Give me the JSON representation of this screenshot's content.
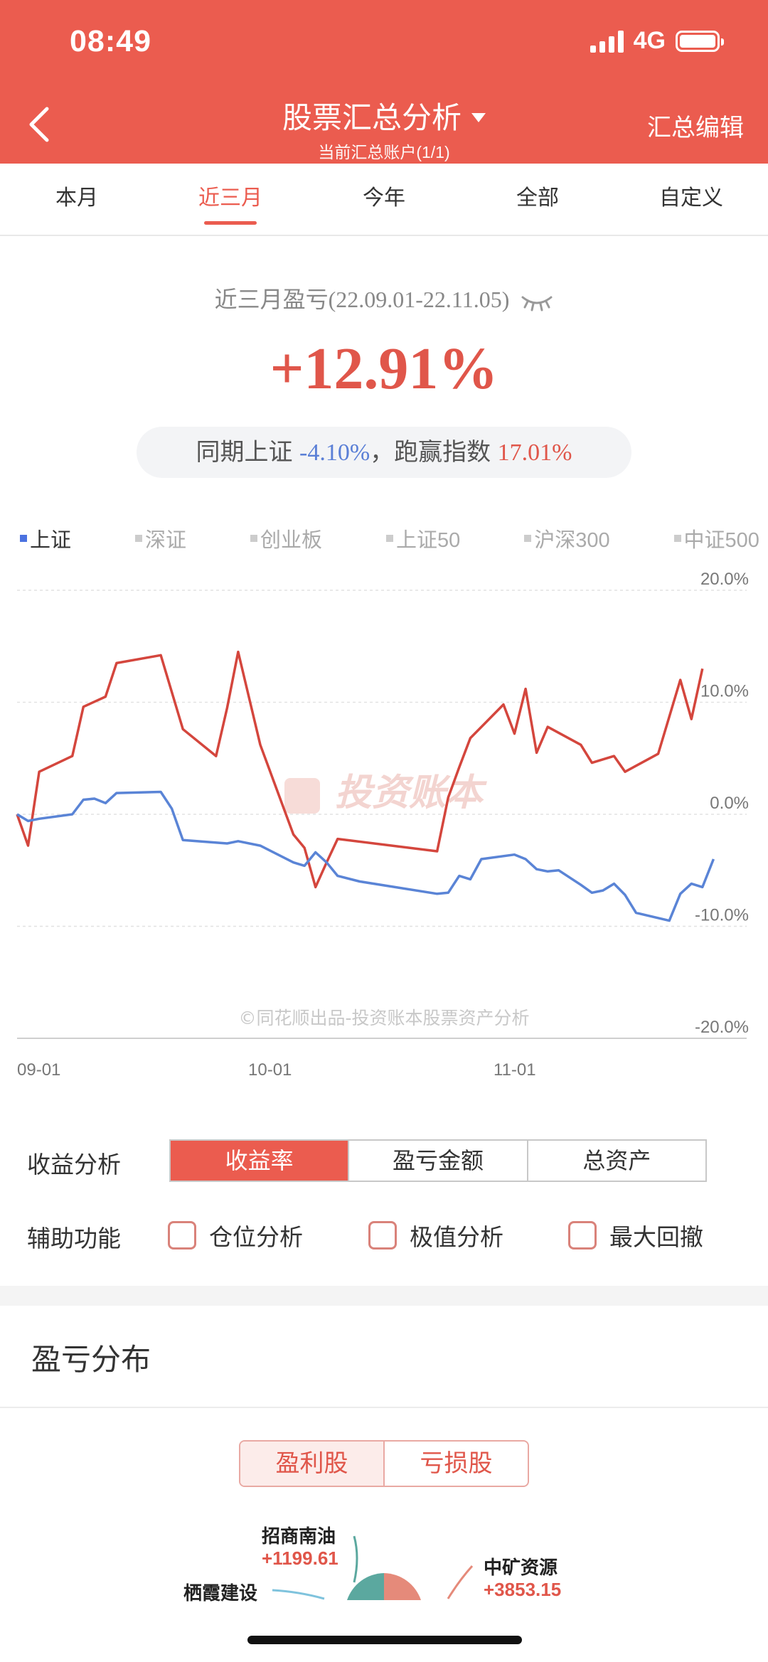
{
  "status_bar": {
    "time": "08:49",
    "network": "4G"
  },
  "header": {
    "title": "股票汇总分析",
    "subtitle": "当前汇总账户(1/1)",
    "edit_label": "汇总编辑"
  },
  "tabs": [
    {
      "label": "本月",
      "active": false
    },
    {
      "label": "近三月",
      "active": true
    },
    {
      "label": "今年",
      "active": false
    },
    {
      "label": "全部",
      "active": false
    },
    {
      "label": "自定义",
      "active": false
    }
  ],
  "summary": {
    "period_label": "近三月盈亏(22.09.01-22.11.05)",
    "profit_pct": "+12.91%",
    "compare_prefix": "同期上证",
    "index_pct": "-4.10%",
    "compare_mid": "，跑赢指数",
    "beat_pct": "17.01%"
  },
  "index_legend": [
    {
      "label": "上证",
      "active": true
    },
    {
      "label": "深证",
      "active": false
    },
    {
      "label": "创业板",
      "active": false
    },
    {
      "label": "上证50",
      "active": false
    },
    {
      "label": "沪深300",
      "active": false
    },
    {
      "label": "中证500",
      "active": false
    }
  ],
  "colors": {
    "accent": "#eb5c4f",
    "portfolio_line": "#d4463d",
    "index_line": "#5a84d6"
  },
  "chart_data": {
    "type": "line",
    "x_ticks": [
      "09-01",
      "10-01",
      "11-01"
    ],
    "y_ticks": [
      "20.0%",
      "10.0%",
      "0.0%",
      "-10.0%",
      "-20.0%"
    ],
    "ylim": [
      -20,
      20
    ],
    "x_range": [
      0,
      66
    ],
    "watermark": "投资账本",
    "footer_note": "©同花顺出品-投资账本股票资产分析",
    "series": [
      {
        "points": [
          [
            0,
            0
          ],
          [
            1,
            -2.8
          ],
          [
            2,
            3.8
          ],
          [
            5,
            5.2
          ],
          [
            6,
            9.6
          ],
          [
            8,
            10.5
          ],
          [
            9,
            13.5
          ],
          [
            13,
            14.2
          ],
          [
            15,
            7.6
          ],
          [
            18,
            5.2
          ],
          [
            19,
            9.5
          ],
          [
            20,
            14.5
          ],
          [
            22,
            6.2
          ],
          [
            25,
            -1.8
          ],
          [
            26,
            -3
          ],
          [
            27,
            -6.5
          ],
          [
            28,
            -4.3
          ],
          [
            29,
            -2.2
          ],
          [
            38,
            -3.3
          ],
          [
            39,
            1.5
          ],
          [
            40,
            4.2
          ],
          [
            41,
            6.8
          ],
          [
            43,
            8.8
          ],
          [
            44,
            9.8
          ],
          [
            45,
            7.2
          ],
          [
            46,
            11.2
          ],
          [
            47,
            5.5
          ],
          [
            48,
            7.8
          ],
          [
            51,
            6.2
          ],
          [
            52,
            4.6
          ],
          [
            53,
            4.9
          ],
          [
            54,
            5.2
          ],
          [
            55,
            3.8
          ],
          [
            58,
            5.4
          ],
          [
            60,
            12
          ],
          [
            61,
            8.5
          ],
          [
            62,
            13
          ]
        ]
      },
      {
        "points": [
          [
            0,
            0
          ],
          [
            1,
            -0.6
          ],
          [
            2,
            -0.4
          ],
          [
            5,
            0
          ],
          [
            6,
            1.3
          ],
          [
            7,
            1.4
          ],
          [
            8,
            1
          ],
          [
            9,
            1.9
          ],
          [
            13,
            2
          ],
          [
            14,
            0.5
          ],
          [
            15,
            -2.3
          ],
          [
            19,
            -2.6
          ],
          [
            20,
            -2.4
          ],
          [
            22,
            -2.8
          ],
          [
            25,
            -4.3
          ],
          [
            26,
            -4.6
          ],
          [
            27,
            -3.4
          ],
          [
            28,
            -4.3
          ],
          [
            29,
            -5.5
          ],
          [
            31,
            -6
          ],
          [
            38,
            -7.1
          ],
          [
            39,
            -7
          ],
          [
            40,
            -5.5
          ],
          [
            41,
            -5.8
          ],
          [
            42,
            -4
          ],
          [
            45,
            -3.6
          ],
          [
            46,
            -4
          ],
          [
            47,
            -4.9
          ],
          [
            48,
            -5.1
          ],
          [
            49,
            -5
          ],
          [
            51,
            -6.3
          ],
          [
            52,
            -7
          ],
          [
            53,
            -6.8
          ],
          [
            54,
            -6.2
          ],
          [
            55,
            -7.2
          ],
          [
            56,
            -8.8
          ],
          [
            59,
            -9.5
          ],
          [
            60,
            -7.1
          ],
          [
            61,
            -6.2
          ],
          [
            62,
            -6.5
          ],
          [
            63,
            -4
          ]
        ]
      }
    ]
  },
  "controls": {
    "analysis_label": "收益分析",
    "segments": [
      {
        "label": "收益率",
        "active": true
      },
      {
        "label": "盈亏金额",
        "active": false
      },
      {
        "label": "总资产",
        "active": false
      }
    ],
    "aux_label": "辅助功能",
    "checks": [
      "仓位分析",
      "极值分析",
      "最大回撤"
    ]
  },
  "distribution": {
    "title": "盈亏分布",
    "tabs": [
      "盈利股",
      "亏损股"
    ],
    "labels": [
      {
        "name": "招商南油",
        "value": "+1199.61"
      },
      {
        "name": "栖霞建设",
        "value": ""
      },
      {
        "name": "中矿资源",
        "value": "+3853.15"
      }
    ]
  }
}
